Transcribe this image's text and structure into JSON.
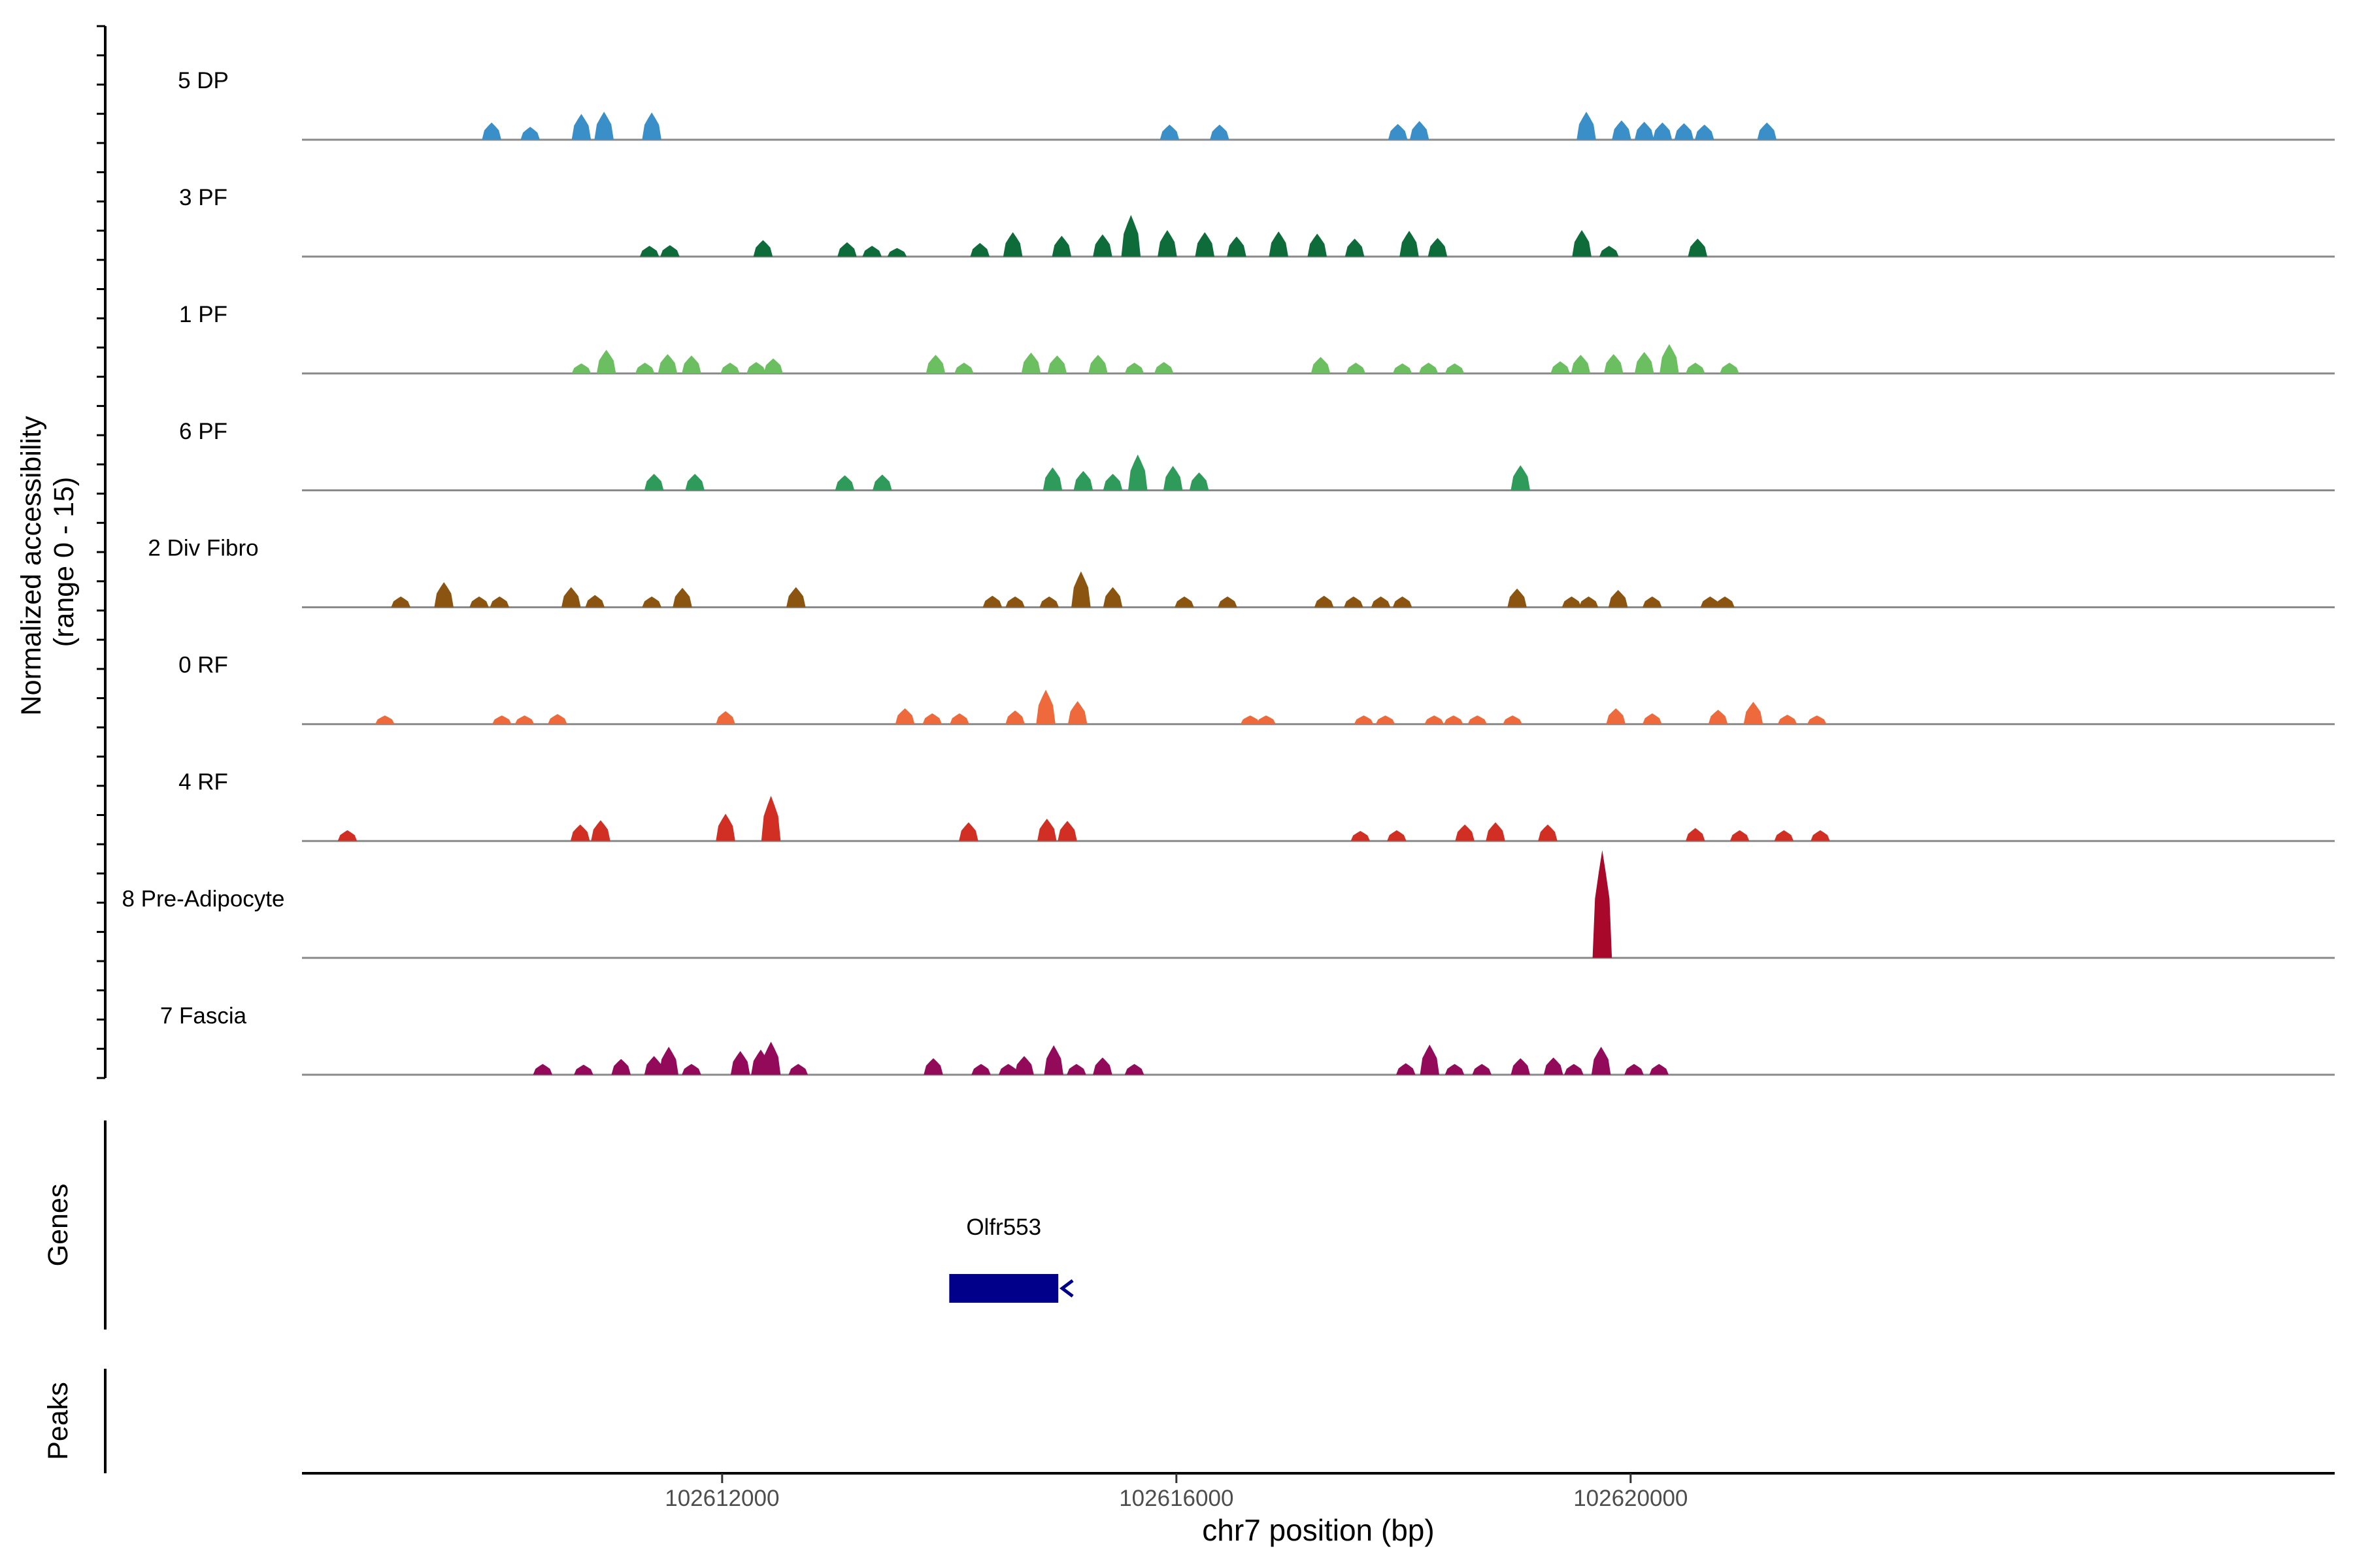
{
  "chart_data": {
    "type": "area",
    "y_axis_label_line1": "Normalized accessibility",
    "y_axis_label_line2": "(range 0 - 15)",
    "y_range": [
      0,
      15
    ],
    "x_axis_label": "chr7 position (bp)",
    "x_range": [
      102608300,
      102626200
    ],
    "x_ticks": [
      {
        "value": 102612000,
        "label": "102612000"
      },
      {
        "value": 102616000,
        "label": "102616000"
      },
      {
        "value": 102620000,
        "label": "102620000"
      }
    ],
    "tracks": [
      {
        "name": "5 DP",
        "color": "#3A8FC9",
        "peaks": [
          [
            102609970,
            2.4
          ],
          [
            102610310,
            1.8
          ],
          [
            102610760,
            3.6
          ],
          [
            102610960,
            3.9
          ],
          [
            102611380,
            3.8
          ],
          [
            102615940,
            2.1
          ],
          [
            102616380,
            2.1
          ],
          [
            102617950,
            2.2
          ],
          [
            102618140,
            2.6
          ],
          [
            102619610,
            3.9
          ],
          [
            102619920,
            2.7
          ],
          [
            102620120,
            2.5
          ],
          [
            102620280,
            2.4
          ],
          [
            102620470,
            2.3
          ],
          [
            102620650,
            2.1
          ],
          [
            102621200,
            2.4
          ]
        ]
      },
      {
        "name": "3 PF",
        "color": "#0E6B3A",
        "peaks": [
          [
            102611360,
            1.5
          ],
          [
            102611540,
            1.6
          ],
          [
            102612360,
            2.3
          ],
          [
            102613100,
            2.0
          ],
          [
            102613320,
            1.5
          ],
          [
            102613540,
            1.2
          ],
          [
            102614270,
            1.9
          ],
          [
            102614560,
            3.4
          ],
          [
            102614990,
            2.9
          ],
          [
            102615350,
            3.1
          ],
          [
            102615600,
            5.8
          ],
          [
            102615920,
            3.7
          ],
          [
            102616250,
            3.4
          ],
          [
            102616530,
            2.8
          ],
          [
            102616900,
            3.5
          ],
          [
            102617240,
            3.2
          ],
          [
            102617570,
            2.5
          ],
          [
            102618050,
            3.6
          ],
          [
            102618300,
            2.6
          ],
          [
            102619570,
            3.7
          ],
          [
            102619810,
            1.5
          ],
          [
            102620590,
            2.5
          ]
        ]
      },
      {
        "name": "1 PF",
        "color": "#6CBF61",
        "peaks": [
          [
            102610760,
            1.4
          ],
          [
            102610980,
            3.3
          ],
          [
            102611320,
            1.5
          ],
          [
            102611520,
            2.7
          ],
          [
            102611730,
            2.5
          ],
          [
            102612070,
            1.5
          ],
          [
            102612300,
            1.6
          ],
          [
            102612450,
            2.1
          ],
          [
            102613880,
            2.6
          ],
          [
            102614130,
            1.5
          ],
          [
            102614720,
            2.9
          ],
          [
            102614950,
            2.5
          ],
          [
            102615310,
            2.6
          ],
          [
            102615630,
            1.5
          ],
          [
            102615890,
            1.6
          ],
          [
            102617270,
            2.3
          ],
          [
            102617580,
            1.5
          ],
          [
            102617990,
            1.4
          ],
          [
            102618220,
            1.5
          ],
          [
            102618450,
            1.4
          ],
          [
            102619380,
            1.7
          ],
          [
            102619560,
            2.6
          ],
          [
            102619850,
            2.7
          ],
          [
            102620120,
            3.0
          ],
          [
            102620340,
            4.1
          ],
          [
            102620570,
            1.5
          ],
          [
            102620870,
            1.5
          ]
        ]
      },
      {
        "name": "6 PF",
        "color": "#2E9B5A",
        "peaks": [
          [
            102611400,
            2.3
          ],
          [
            102611760,
            2.3
          ],
          [
            102613080,
            2.1
          ],
          [
            102613410,
            2.2
          ],
          [
            102614910,
            3.2
          ],
          [
            102615180,
            2.7
          ],
          [
            102615440,
            2.3
          ],
          [
            102615660,
            5.0
          ],
          [
            102615970,
            3.4
          ],
          [
            102616200,
            2.5
          ],
          [
            102619030,
            3.5
          ]
        ]
      },
      {
        "name": "2 Div Fibro",
        "color": "#8B5410",
        "peaks": [
          [
            102609170,
            1.5
          ],
          [
            102609550,
            3.5
          ],
          [
            102609860,
            1.5
          ],
          [
            102610040,
            1.5
          ],
          [
            102610670,
            2.8
          ],
          [
            102610880,
            1.7
          ],
          [
            102611380,
            1.5
          ],
          [
            102611650,
            2.7
          ],
          [
            102612650,
            2.8
          ],
          [
            102614380,
            1.6
          ],
          [
            102614580,
            1.5
          ],
          [
            102614880,
            1.5
          ],
          [
            102615160,
            5.0
          ],
          [
            102615440,
            2.8
          ],
          [
            102616070,
            1.5
          ],
          [
            102616450,
            1.5
          ],
          [
            102617300,
            1.6
          ],
          [
            102617560,
            1.5
          ],
          [
            102617800,
            1.5
          ],
          [
            102617990,
            1.5
          ],
          [
            102619000,
            2.6
          ],
          [
            102619480,
            1.5
          ],
          [
            102619630,
            1.5
          ],
          [
            102619890,
            2.4
          ],
          [
            102620190,
            1.5
          ],
          [
            102620700,
            1.5
          ],
          [
            102620830,
            1.5
          ]
        ]
      },
      {
        "name": "0 RF",
        "color": "#EE6A3C",
        "peaks": [
          [
            102609030,
            1.2
          ],
          [
            102610060,
            1.2
          ],
          [
            102610260,
            1.2
          ],
          [
            102610550,
            1.4
          ],
          [
            102612030,
            1.8
          ],
          [
            102613610,
            2.2
          ],
          [
            102613850,
            1.5
          ],
          [
            102614090,
            1.5
          ],
          [
            102614580,
            1.9
          ],
          [
            102614850,
            4.8
          ],
          [
            102615130,
            3.2
          ],
          [
            102616650,
            1.2
          ],
          [
            102616790,
            1.2
          ],
          [
            102617650,
            1.2
          ],
          [
            102617840,
            1.2
          ],
          [
            102618270,
            1.2
          ],
          [
            102618440,
            1.2
          ],
          [
            102618650,
            1.2
          ],
          [
            102618960,
            1.2
          ],
          [
            102619870,
            2.2
          ],
          [
            102620190,
            1.5
          ],
          [
            102620770,
            2.0
          ],
          [
            102621080,
            3.1
          ],
          [
            102621380,
            1.3
          ],
          [
            102621640,
            1.2
          ]
        ]
      },
      {
        "name": "4 RF",
        "color": "#D22F24",
        "peaks": [
          [
            102608700,
            1.5
          ],
          [
            102610750,
            2.3
          ],
          [
            102610930,
            2.9
          ],
          [
            102612030,
            3.8
          ],
          [
            102612430,
            6.3
          ],
          [
            102614170,
            2.6
          ],
          [
            102614860,
            3.1
          ],
          [
            102615040,
            2.8
          ],
          [
            102617620,
            1.4
          ],
          [
            102617940,
            1.5
          ],
          [
            102618540,
            2.3
          ],
          [
            102618810,
            2.6
          ],
          [
            102619270,
            2.3
          ],
          [
            102620570,
            1.8
          ],
          [
            102620960,
            1.5
          ],
          [
            102621350,
            1.5
          ],
          [
            102621670,
            1.5
          ]
        ]
      },
      {
        "name": "8 Pre-Adipocyte",
        "color": "#A8092A",
        "peaks": [
          [
            102619750,
            15.0
          ]
        ]
      },
      {
        "name": "7 Fascia",
        "color": "#940A5A",
        "peaks": [
          [
            102610420,
            1.5
          ],
          [
            102610780,
            1.4
          ],
          [
            102611110,
            2.2
          ],
          [
            102611400,
            2.6
          ],
          [
            102611530,
            3.9
          ],
          [
            102611730,
            1.5
          ],
          [
            102612160,
            3.3
          ],
          [
            102612340,
            3.5
          ],
          [
            102612430,
            4.6
          ],
          [
            102612670,
            1.5
          ],
          [
            102613860,
            2.3
          ],
          [
            102614280,
            1.5
          ],
          [
            102614520,
            1.5
          ],
          [
            102614660,
            2.6
          ],
          [
            102614920,
            4.1
          ],
          [
            102615120,
            1.5
          ],
          [
            102615350,
            2.4
          ],
          [
            102615630,
            1.5
          ],
          [
            102618020,
            1.6
          ],
          [
            102618230,
            4.2
          ],
          [
            102618450,
            1.5
          ],
          [
            102618690,
            1.5
          ],
          [
            102619030,
            2.3
          ],
          [
            102619320,
            2.4
          ],
          [
            102619500,
            1.5
          ],
          [
            102619740,
            3.9
          ],
          [
            102620030,
            1.5
          ],
          [
            102620250,
            1.5
          ]
        ]
      }
    ],
    "genes_track_label": "Genes",
    "genes": [
      {
        "name": "Olfr553",
        "start": 102614000,
        "end": 102614960,
        "strand": "-"
      }
    ],
    "peaks_track_label": "Peaks",
    "grid": false
  }
}
